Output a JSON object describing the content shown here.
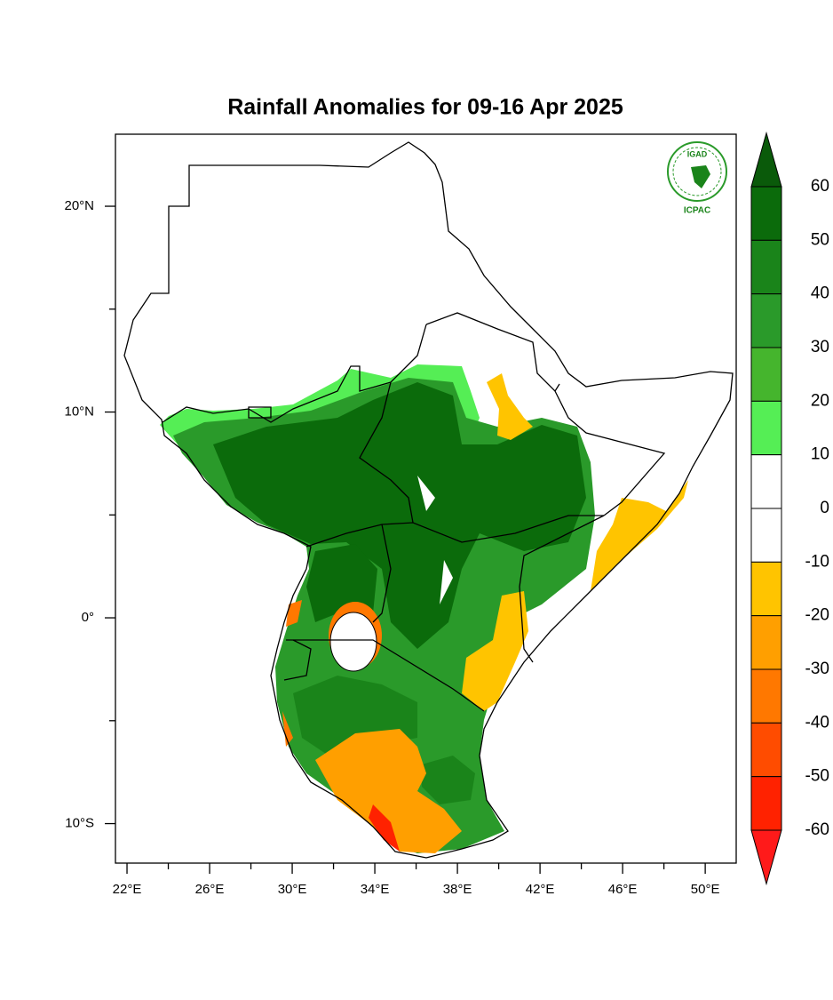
{
  "chart_data": {
    "type": "map",
    "title": "Rainfall Anomalies for 09-16 Apr 2025",
    "logo": {
      "name": "IGAD",
      "subtitle": "ICPAC"
    },
    "xlim": [
      21.44,
      51.5
    ],
    "ylim": [
      -11.92,
      23.5
    ],
    "xticks": [
      {
        "value": 22,
        "label": "22°E"
      },
      {
        "value": 26,
        "label": "26°E"
      },
      {
        "value": 30,
        "label": "30°E"
      },
      {
        "value": 34,
        "label": "34°E"
      },
      {
        "value": 38,
        "label": "38°E"
      },
      {
        "value": 42,
        "label": "42°E"
      },
      {
        "value": 46,
        "label": "46°E"
      },
      {
        "value": 50,
        "label": "50°E"
      }
    ],
    "xminorticks": [
      24,
      28,
      32,
      36,
      40,
      44,
      48
    ],
    "yticks": [
      {
        "value": 20,
        "label": "20°N"
      },
      {
        "value": 10,
        "label": "10°N"
      },
      {
        "value": 0,
        "label": "0°"
      },
      {
        "value": -10,
        "label": "10°S"
      }
    ],
    "yminorticks": [
      15,
      5,
      -5
    ],
    "colorbar": {
      "levels": [
        60,
        50,
        40,
        30,
        20,
        10,
        0,
        -10,
        -20,
        -30,
        -40,
        -50,
        -60
      ],
      "colors": [
        "#0b6b0b",
        "#1a841a",
        "#2a9a2a",
        "#45b52d",
        "#55ee55",
        "#ffffff",
        "#ffffff",
        "#ffc400",
        "#ff9f00",
        "#ff7800",
        "#ff4c00",
        "#ff2200"
      ],
      "over_color": "#0a5a0a",
      "under_color": "#ff1a1a"
    }
  }
}
